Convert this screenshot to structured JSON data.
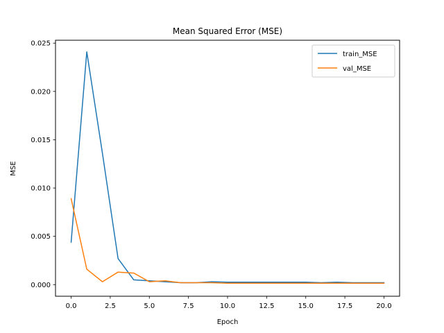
{
  "chart_data": {
    "type": "line",
    "title": "Mean Squared Error (MSE)",
    "xlabel": "Epoch",
    "ylabel": "MSE",
    "xlim": [
      -1.0,
      21.0
    ],
    "ylim": [
      -0.0012,
      0.0253
    ],
    "x_ticks": [
      0.0,
      2.5,
      5.0,
      7.5,
      10.0,
      12.5,
      15.0,
      17.5,
      20.0
    ],
    "x_tick_labels": [
      "0.0",
      "2.5",
      "5.0",
      "7.5",
      "10.0",
      "12.5",
      "15.0",
      "17.5",
      "20.0"
    ],
    "y_ticks": [
      0.0,
      0.005,
      0.01,
      0.015,
      0.02,
      0.025
    ],
    "y_tick_labels": [
      "0.000",
      "0.005",
      "0.010",
      "0.015",
      "0.020",
      "0.025"
    ],
    "grid": false,
    "legend_position": "top-right",
    "x": [
      0,
      1,
      2,
      3,
      4,
      5,
      6,
      7,
      8,
      9,
      10,
      11,
      12,
      13,
      14,
      15,
      16,
      17,
      18,
      19,
      20
    ],
    "series": [
      {
        "name": "train_MSE",
        "color": "#1f77b4",
        "values": [
          0.0044,
          0.0241,
          0.0136,
          0.0027,
          0.0005,
          0.0004,
          0.0003,
          0.0002,
          0.0002,
          0.0003,
          0.00025,
          0.00025,
          0.00025,
          0.00025,
          0.00025,
          0.00025,
          0.0002,
          0.00025,
          0.0002,
          0.0002,
          0.0002
        ]
      },
      {
        "name": "val_MSE",
        "color": "#ff7f0e",
        "values": [
          0.0089,
          0.0016,
          0.0003,
          0.0013,
          0.0012,
          0.0003,
          0.0004,
          0.0002,
          0.0002,
          0.0002,
          0.00015,
          0.00015,
          0.00015,
          0.00015,
          0.00015,
          0.00015,
          0.00015,
          0.00015,
          0.00015,
          0.00015,
          0.00015
        ]
      }
    ]
  }
}
